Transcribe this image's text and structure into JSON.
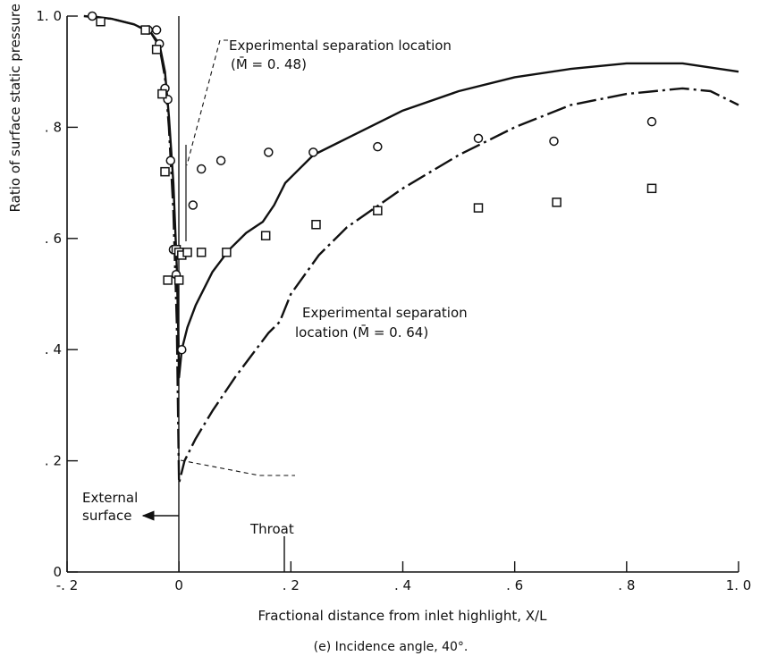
{
  "chart_data": {
    "type": "line",
    "caption": "(e) Incidence angle, 40°.",
    "xlabel": "Fractional distance from inlet highlight, X/L",
    "ylabel": "Ratio of surface static pressure",
    "xlim": [
      -0.2,
      1.0
    ],
    "ylim": [
      0,
      1.0
    ],
    "x_ticks": [
      -0.2,
      0,
      0.2,
      0.4,
      0.6,
      0.8,
      1.0
    ],
    "x_tick_labels": [
      "-. 2",
      "0",
      ". 2",
      ". 4",
      ". 6",
      ". 8",
      "1. 0"
    ],
    "y_ticks": [
      0,
      0.2,
      0.4,
      0.6,
      0.8,
      1.0
    ],
    "y_tick_labels": [
      "0",
      ". 2",
      ". 4",
      ". 6",
      ". 8",
      "1. 0"
    ],
    "grid": false,
    "series": [
      {
        "style": "solid",
        "x": [
          -0.16,
          -0.12,
          -0.08,
          -0.05,
          -0.035,
          -0.025,
          -0.018,
          -0.01,
          -0.004,
          -0.001,
          0.0,
          0.005,
          0.015,
          0.03,
          0.06,
          0.09,
          0.12,
          0.15,
          0.17,
          0.19,
          0.21,
          0.24,
          0.3,
          0.4,
          0.5,
          0.6,
          0.7,
          0.8,
          0.9,
          1.0
        ],
        "y": [
          1.0,
          0.995,
          0.985,
          0.97,
          0.95,
          0.9,
          0.82,
          0.7,
          0.55,
          0.42,
          0.35,
          0.4,
          0.44,
          0.48,
          0.54,
          0.58,
          0.61,
          0.63,
          0.66,
          0.7,
          0.72,
          0.75,
          0.78,
          0.83,
          0.865,
          0.89,
          0.905,
          0.915,
          0.915,
          0.9
        ]
      },
      {
        "style": "dash-dot",
        "x": [
          -0.17,
          -0.12,
          -0.08,
          -0.05,
          -0.035,
          -0.025,
          -0.018,
          -0.01,
          -0.004,
          0.0,
          0.01,
          0.03,
          0.06,
          0.1,
          0.13,
          0.16,
          0.18,
          0.2,
          0.25,
          0.3,
          0.4,
          0.5,
          0.6,
          0.7,
          0.8,
          0.9,
          0.95,
          1.0
        ],
        "y": [
          1.0,
          0.995,
          0.985,
          0.97,
          0.945,
          0.89,
          0.8,
          0.65,
          0.45,
          0.16,
          0.2,
          0.24,
          0.29,
          0.35,
          0.39,
          0.43,
          0.45,
          0.5,
          0.57,
          0.62,
          0.69,
          0.75,
          0.8,
          0.84,
          0.86,
          0.87,
          0.865,
          0.84
        ]
      }
    ],
    "markers": [
      {
        "shape": "circle",
        "x": [
          -0.155,
          -0.055,
          -0.04,
          -0.035,
          -0.025,
          -0.02,
          -0.015,
          -0.01,
          -0.005,
          0.005,
          0.025,
          0.04,
          0.075,
          0.16,
          0.24,
          0.355,
          0.535,
          0.67,
          0.845
        ],
        "y": [
          1.0,
          0.975,
          0.975,
          0.95,
          0.87,
          0.85,
          0.74,
          0.58,
          0.535,
          0.4,
          0.66,
          0.725,
          0.74,
          0.755,
          0.755,
          0.765,
          0.78,
          0.775,
          0.81
        ]
      },
      {
        "shape": "square",
        "x": [
          -0.14,
          -0.06,
          -0.04,
          -0.03,
          -0.025,
          -0.02,
          -0.005,
          0.0,
          0.0,
          0.005,
          0.015,
          0.04,
          0.085,
          0.155,
          0.245,
          0.355,
          0.535,
          0.675,
          0.845
        ],
        "y": [
          0.99,
          0.975,
          0.94,
          0.86,
          0.72,
          0.525,
          0.58,
          0.525,
          0.575,
          0.57,
          0.575,
          0.575,
          0.575,
          0.605,
          0.625,
          0.65,
          0.655,
          0.665,
          0.69
        ]
      }
    ],
    "annotations": {
      "sep_048_line1": "Experimental separation location",
      "sep_048_line2": "(M̄ = 0. 48)",
      "sep_064_line1": "Experimental separation",
      "sep_064_line2": "location (M̄ = 0. 64)",
      "external_line1": "External",
      "external_line2": "surface",
      "throat": "Throat"
    }
  }
}
